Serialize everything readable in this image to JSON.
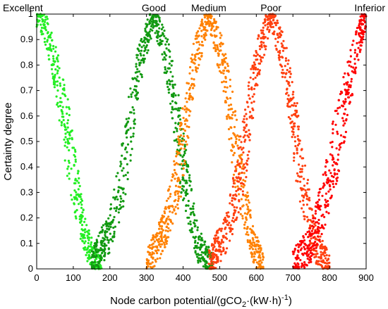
{
  "chart_data": {
    "type": "scatter",
    "title": "",
    "xlabel": "Node carbon potential/(gCO",
    "xlabel_sub": "2",
    "xlabel_tail": "·(kW·h)",
    "xlabel_sup": "-1",
    "xlabel_close": ")",
    "ylabel": "Certainty degree",
    "xlim": [
      0,
      900
    ],
    "ylim": [
      0,
      1
    ],
    "xticks": [
      "0",
      "100",
      "200",
      "300",
      "400",
      "500",
      "600",
      "700",
      "800",
      "900"
    ],
    "yticks": [
      "0",
      "0.1",
      "0.2",
      "0.3",
      "0.4",
      "0.5",
      "0.6",
      "0.7",
      "0.8",
      "0.9",
      "1"
    ],
    "grid": false,
    "legend": "none",
    "series": [
      {
        "name": "Excellent",
        "color": "#22ee22",
        "center": 0,
        "points": [
          [
            0,
            1.0
          ],
          [
            20,
            0.96
          ],
          [
            40,
            0.86
          ],
          [
            60,
            0.72
          ],
          [
            80,
            0.55
          ],
          [
            100,
            0.38
          ],
          [
            120,
            0.22
          ],
          [
            140,
            0.09
          ],
          [
            160,
            0.03
          ],
          [
            180,
            0.01
          ]
        ]
      },
      {
        "name": "Good",
        "color": "#119911",
        "center": 320,
        "points": [
          [
            150,
            0.02
          ],
          [
            200,
            0.15
          ],
          [
            240,
            0.4
          ],
          [
            280,
            0.8
          ],
          [
            320,
            1.0
          ],
          [
            360,
            0.8
          ],
          [
            400,
            0.4
          ],
          [
            440,
            0.1
          ],
          [
            480,
            0.01
          ]
        ]
      },
      {
        "name": "Medium",
        "color": "#ff8000",
        "center": 470,
        "points": [
          [
            300,
            0.02
          ],
          [
            350,
            0.15
          ],
          [
            390,
            0.4
          ],
          [
            430,
            0.8
          ],
          [
            470,
            1.0
          ],
          [
            510,
            0.8
          ],
          [
            550,
            0.4
          ],
          [
            590,
            0.1
          ],
          [
            620,
            0.01
          ]
        ]
      },
      {
        "name": "Poor",
        "color": "#ff4010",
        "center": 640,
        "points": [
          [
            470,
            0.02
          ],
          [
            520,
            0.15
          ],
          [
            560,
            0.4
          ],
          [
            600,
            0.8
          ],
          [
            640,
            1.0
          ],
          [
            680,
            0.8
          ],
          [
            720,
            0.4
          ],
          [
            760,
            0.1
          ],
          [
            800,
            0.01
          ]
        ]
      },
      {
        "name": "Inferior",
        "color": "#ff0000",
        "center": 900,
        "points": [
          [
            700,
            0.02
          ],
          [
            750,
            0.1
          ],
          [
            790,
            0.3
          ],
          [
            820,
            0.5
          ],
          [
            850,
            0.7
          ],
          [
            880,
            0.9
          ],
          [
            900,
            1.0
          ]
        ]
      }
    ],
    "annotations": [
      "Excellent",
      "Good",
      "Medium",
      "Poor",
      "Inferior"
    ]
  }
}
